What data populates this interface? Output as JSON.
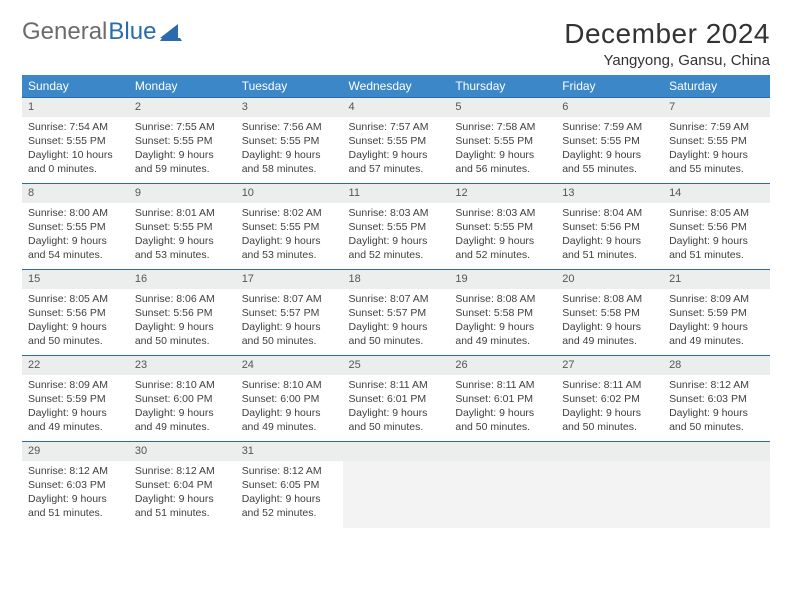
{
  "logo": {
    "text1": "General",
    "text2": "Blue"
  },
  "title": {
    "month": "December 2024",
    "location": "Yangyong, Gansu, China"
  },
  "colors": {
    "header_bg": "#3b87c8",
    "header_fg": "#ffffff",
    "daynum_bg": "#eceeee",
    "cell_border": "#2a6bb0",
    "logo_gray": "#6c6c6c",
    "logo_blue": "#2a6bb0"
  },
  "weekdays": [
    "Sunday",
    "Monday",
    "Tuesday",
    "Wednesday",
    "Thursday",
    "Friday",
    "Saturday"
  ],
  "weeks": [
    [
      {
        "n": "1",
        "sr": "Sunrise: 7:54 AM",
        "ss": "Sunset: 5:55 PM",
        "dl": "Daylight: 10 hours and 0 minutes."
      },
      {
        "n": "2",
        "sr": "Sunrise: 7:55 AM",
        "ss": "Sunset: 5:55 PM",
        "dl": "Daylight: 9 hours and 59 minutes."
      },
      {
        "n": "3",
        "sr": "Sunrise: 7:56 AM",
        "ss": "Sunset: 5:55 PM",
        "dl": "Daylight: 9 hours and 58 minutes."
      },
      {
        "n": "4",
        "sr": "Sunrise: 7:57 AM",
        "ss": "Sunset: 5:55 PM",
        "dl": "Daylight: 9 hours and 57 minutes."
      },
      {
        "n": "5",
        "sr": "Sunrise: 7:58 AM",
        "ss": "Sunset: 5:55 PM",
        "dl": "Daylight: 9 hours and 56 minutes."
      },
      {
        "n": "6",
        "sr": "Sunrise: 7:59 AM",
        "ss": "Sunset: 5:55 PM",
        "dl": "Daylight: 9 hours and 55 minutes."
      },
      {
        "n": "7",
        "sr": "Sunrise: 7:59 AM",
        "ss": "Sunset: 5:55 PM",
        "dl": "Daylight: 9 hours and 55 minutes."
      }
    ],
    [
      {
        "n": "8",
        "sr": "Sunrise: 8:00 AM",
        "ss": "Sunset: 5:55 PM",
        "dl": "Daylight: 9 hours and 54 minutes."
      },
      {
        "n": "9",
        "sr": "Sunrise: 8:01 AM",
        "ss": "Sunset: 5:55 PM",
        "dl": "Daylight: 9 hours and 53 minutes."
      },
      {
        "n": "10",
        "sr": "Sunrise: 8:02 AM",
        "ss": "Sunset: 5:55 PM",
        "dl": "Daylight: 9 hours and 53 minutes."
      },
      {
        "n": "11",
        "sr": "Sunrise: 8:03 AM",
        "ss": "Sunset: 5:55 PM",
        "dl": "Daylight: 9 hours and 52 minutes."
      },
      {
        "n": "12",
        "sr": "Sunrise: 8:03 AM",
        "ss": "Sunset: 5:55 PM",
        "dl": "Daylight: 9 hours and 52 minutes."
      },
      {
        "n": "13",
        "sr": "Sunrise: 8:04 AM",
        "ss": "Sunset: 5:56 PM",
        "dl": "Daylight: 9 hours and 51 minutes."
      },
      {
        "n": "14",
        "sr": "Sunrise: 8:05 AM",
        "ss": "Sunset: 5:56 PM",
        "dl": "Daylight: 9 hours and 51 minutes."
      }
    ],
    [
      {
        "n": "15",
        "sr": "Sunrise: 8:05 AM",
        "ss": "Sunset: 5:56 PM",
        "dl": "Daylight: 9 hours and 50 minutes."
      },
      {
        "n": "16",
        "sr": "Sunrise: 8:06 AM",
        "ss": "Sunset: 5:56 PM",
        "dl": "Daylight: 9 hours and 50 minutes."
      },
      {
        "n": "17",
        "sr": "Sunrise: 8:07 AM",
        "ss": "Sunset: 5:57 PM",
        "dl": "Daylight: 9 hours and 50 minutes."
      },
      {
        "n": "18",
        "sr": "Sunrise: 8:07 AM",
        "ss": "Sunset: 5:57 PM",
        "dl": "Daylight: 9 hours and 50 minutes."
      },
      {
        "n": "19",
        "sr": "Sunrise: 8:08 AM",
        "ss": "Sunset: 5:58 PM",
        "dl": "Daylight: 9 hours and 49 minutes."
      },
      {
        "n": "20",
        "sr": "Sunrise: 8:08 AM",
        "ss": "Sunset: 5:58 PM",
        "dl": "Daylight: 9 hours and 49 minutes."
      },
      {
        "n": "21",
        "sr": "Sunrise: 8:09 AM",
        "ss": "Sunset: 5:59 PM",
        "dl": "Daylight: 9 hours and 49 minutes."
      }
    ],
    [
      {
        "n": "22",
        "sr": "Sunrise: 8:09 AM",
        "ss": "Sunset: 5:59 PM",
        "dl": "Daylight: 9 hours and 49 minutes."
      },
      {
        "n": "23",
        "sr": "Sunrise: 8:10 AM",
        "ss": "Sunset: 6:00 PM",
        "dl": "Daylight: 9 hours and 49 minutes."
      },
      {
        "n": "24",
        "sr": "Sunrise: 8:10 AM",
        "ss": "Sunset: 6:00 PM",
        "dl": "Daylight: 9 hours and 49 minutes."
      },
      {
        "n": "25",
        "sr": "Sunrise: 8:11 AM",
        "ss": "Sunset: 6:01 PM",
        "dl": "Daylight: 9 hours and 50 minutes."
      },
      {
        "n": "26",
        "sr": "Sunrise: 8:11 AM",
        "ss": "Sunset: 6:01 PM",
        "dl": "Daylight: 9 hours and 50 minutes."
      },
      {
        "n": "27",
        "sr": "Sunrise: 8:11 AM",
        "ss": "Sunset: 6:02 PM",
        "dl": "Daylight: 9 hours and 50 minutes."
      },
      {
        "n": "28",
        "sr": "Sunrise: 8:12 AM",
        "ss": "Sunset: 6:03 PM",
        "dl": "Daylight: 9 hours and 50 minutes."
      }
    ],
    [
      {
        "n": "29",
        "sr": "Sunrise: 8:12 AM",
        "ss": "Sunset: 6:03 PM",
        "dl": "Daylight: 9 hours and 51 minutes."
      },
      {
        "n": "30",
        "sr": "Sunrise: 8:12 AM",
        "ss": "Sunset: 6:04 PM",
        "dl": "Daylight: 9 hours and 51 minutes."
      },
      {
        "n": "31",
        "sr": "Sunrise: 8:12 AM",
        "ss": "Sunset: 6:05 PM",
        "dl": "Daylight: 9 hours and 52 minutes."
      },
      null,
      null,
      null,
      null
    ]
  ]
}
